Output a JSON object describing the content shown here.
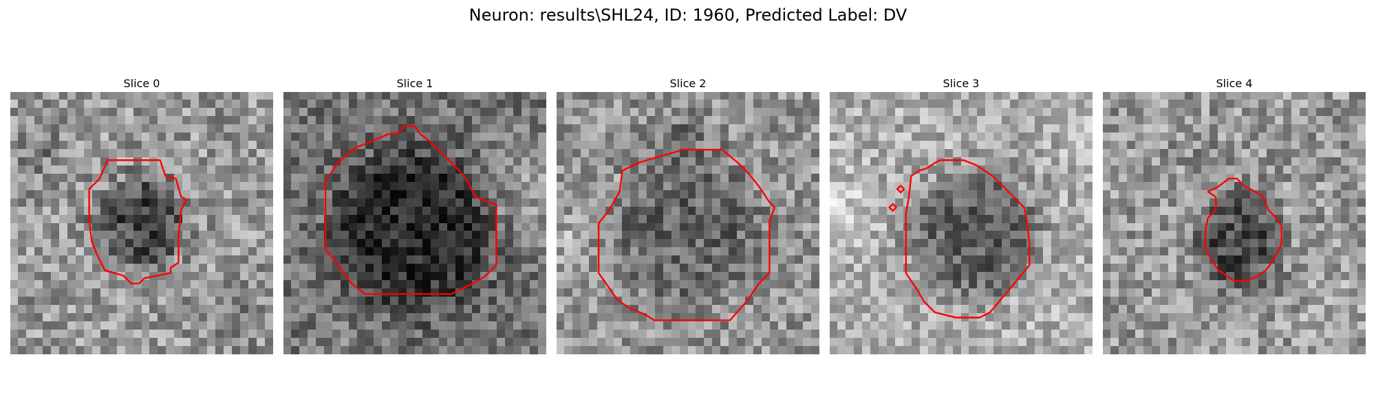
{
  "figure": {
    "title": "Neuron: results\\SHL24, ID: 1960, Predicted Label: DV"
  },
  "panels": [
    {
      "title": "Slice 0"
    },
    {
      "title": "Slice 1"
    },
    {
      "title": "Slice 2"
    },
    {
      "title": "Slice 3"
    },
    {
      "title": "Slice 4"
    }
  ],
  "colors": {
    "background": "#ffffff",
    "contour": "#ff0000",
    "colormap": "grayscale"
  }
}
